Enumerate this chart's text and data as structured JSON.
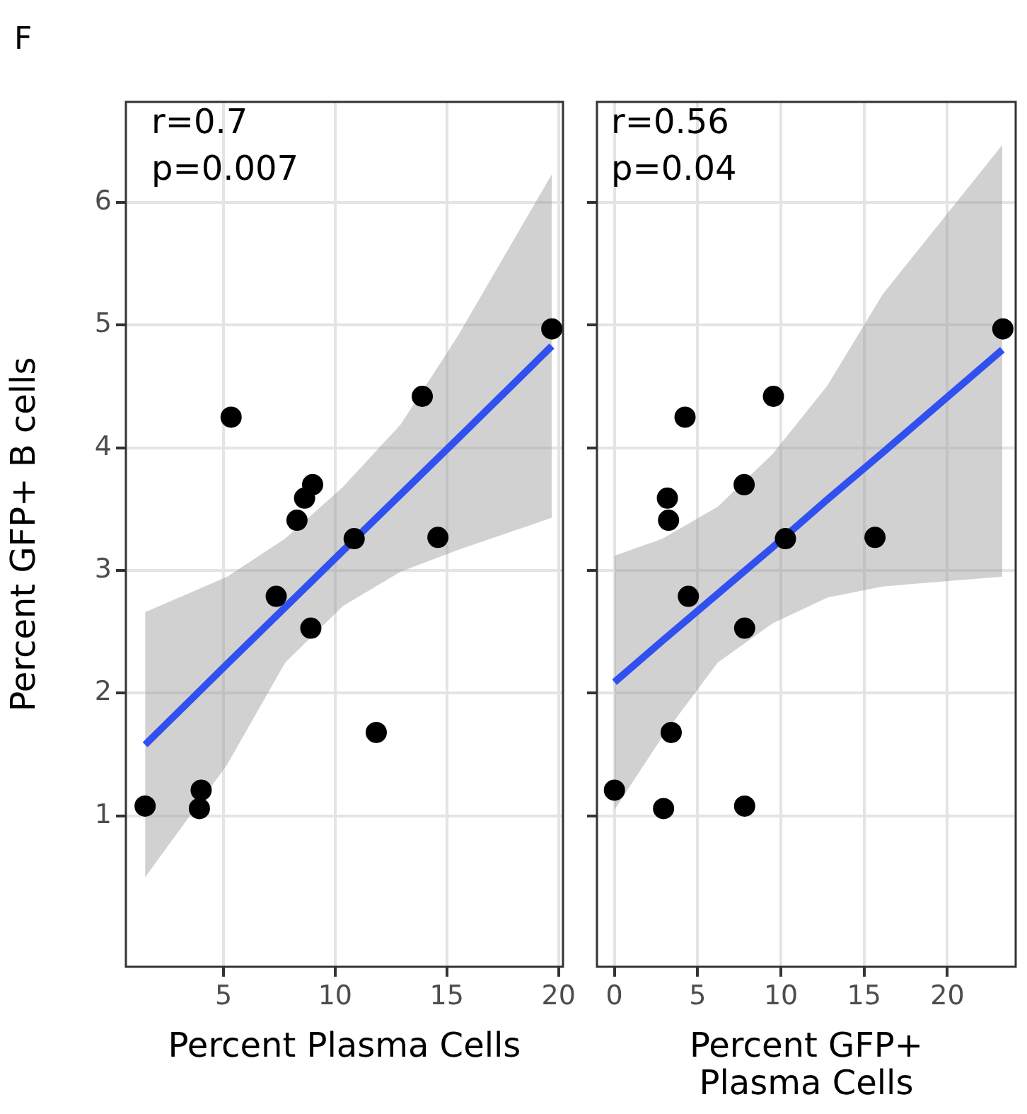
{
  "chart_data": [
    {
      "type": "scatter",
      "title": "F",
      "xlabel": "Percent Plasma Cells",
      "ylabel": "Percent GFP+ B cells",
      "annotations": [
        "r=0.7",
        "p=0.007"
      ],
      "xlim": [
        0.63,
        20.2
      ],
      "xticks": [
        5,
        10,
        15,
        20
      ],
      "ylim": [
        -0.23,
        6.82
      ],
      "yticks": [
        1,
        2,
        3,
        4,
        5,
        6
      ],
      "grid": true,
      "series": [
        {
          "type": "scatter",
          "marker": "circle",
          "color": "#000000",
          "x": [
            1.49,
            3.92,
            4.0,
            5.34,
            7.36,
            8.29,
            8.63,
            8.99,
            8.91,
            10.85,
            11.84,
            13.9,
            14.6,
            19.7
          ],
          "values": [
            1.08,
            1.06,
            1.21,
            4.25,
            2.79,
            3.41,
            3.59,
            3.7,
            2.53,
            3.26,
            1.68,
            4.42,
            3.27,
            4.97
          ]
        },
        {
          "type": "line",
          "color": "#3050f0",
          "x": [
            1.49,
            5.17,
            7.76,
            10.34,
            12.93,
            15.52,
            19.7
          ],
          "values": [
            1.58,
            2.24,
            2.7,
            3.16,
            3.62,
            4.08,
            4.83
          ],
          "lower": [
            0.5,
            1.42,
            2.25,
            2.71,
            2.99,
            3.17,
            3.43
          ],
          "upper": [
            2.66,
            2.95,
            3.26,
            3.68,
            4.19,
            4.92,
            6.23
          ]
        }
      ]
    },
    {
      "type": "scatter",
      "xlabel": "Percent GFP+ Plasma Cells",
      "annotations": [
        "r=0.56",
        "p=0.04"
      ],
      "xlim": [
        -1.05,
        24.1
      ],
      "xticks": [
        0,
        5,
        10,
        15,
        20
      ],
      "ylim": [
        -0.23,
        6.82
      ],
      "yticks": [
        1,
        2,
        3,
        4,
        5,
        6
      ],
      "tick_labels": "x",
      "grid": true,
      "series": [
        {
          "type": "scatter",
          "marker": "circle",
          "color": "#000000",
          "x": [
            0.0,
            2.95,
            3.41,
            4.24,
            4.44,
            3.25,
            3.18,
            7.79,
            7.82,
            10.27,
            7.82,
            9.55,
            15.65,
            23.33
          ],
          "values": [
            1.21,
            1.06,
            1.68,
            4.25,
            2.79,
            3.41,
            3.59,
            3.7,
            2.53,
            3.26,
            1.08,
            4.42,
            3.27,
            4.97
          ]
        },
        {
          "type": "line",
          "color": "#3050f0",
          "x": [
            0,
            2.9,
            6.2,
            9.5,
            12.8,
            16.1,
            23.3
          ],
          "values": [
            2.09,
            2.43,
            2.81,
            3.19,
            3.58,
            3.96,
            4.8
          ],
          "lower": [
            1.05,
            1.65,
            2.25,
            2.57,
            2.78,
            2.87,
            2.95
          ],
          "upper": [
            3.12,
            3.26,
            3.52,
            3.95,
            4.51,
            5.25,
            6.47
          ]
        }
      ]
    }
  ]
}
